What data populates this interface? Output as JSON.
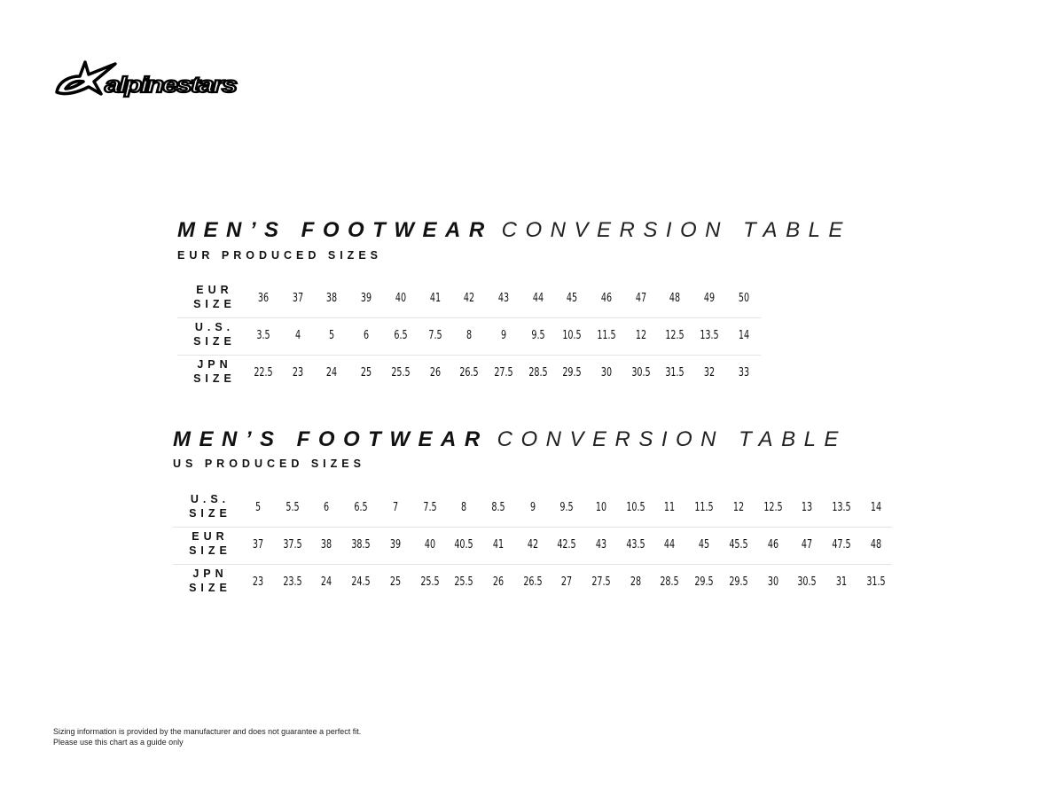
{
  "brand": {
    "logo_text": "alpinestars"
  },
  "tables": [
    {
      "title_bold": "MEN’S FOOTWEAR",
      "title_light": "CONVERSION TABLE",
      "subtitle": "EUR PRODUCED SIZES",
      "rows": [
        {
          "label_top": "EUR",
          "label_bottom": "SIZE",
          "values": [
            "36",
            "37",
            "38",
            "39",
            "40",
            "41",
            "42",
            "43",
            "44",
            "45",
            "46",
            "47",
            "48",
            "49",
            "50"
          ]
        },
        {
          "label_top": "U.S.",
          "label_bottom": "SIZE",
          "values": [
            "3.5",
            "4",
            "5",
            "6",
            "6.5",
            "7.5",
            "8",
            "9",
            "9.5",
            "10.5",
            "11.5",
            "12",
            "12.5",
            "13.5",
            "14"
          ]
        },
        {
          "label_top": "JPN",
          "label_bottom": "SIZE",
          "values": [
            "22.5",
            "23",
            "24",
            "25",
            "25.5",
            "26",
            "26.5",
            "27.5",
            "28.5",
            "29.5",
            "30",
            "30.5",
            "31.5",
            "32",
            "33"
          ]
        }
      ]
    },
    {
      "title_bold": "MEN’S FOOTWEAR",
      "title_light": "CONVERSION TABLE",
      "subtitle": "US PRODUCED SIZES",
      "rows": [
        {
          "label_top": "U.S.",
          "label_bottom": "SIZE",
          "values": [
            "5",
            "5.5",
            "6",
            "6.5",
            "7",
            "7.5",
            "8",
            "8.5",
            "9",
            "9.5",
            "10",
            "10.5",
            "11",
            "11.5",
            "12",
            "12.5",
            "13",
            "13.5",
            "14"
          ]
        },
        {
          "label_top": "EUR",
          "label_bottom": "SIZE",
          "values": [
            "37",
            "37.5",
            "38",
            "38.5",
            "39",
            "40",
            "40.5",
            "41",
            "42",
            "42.5",
            "43",
            "43.5",
            "44",
            "45",
            "45.5",
            "46",
            "47",
            "47.5",
            "48"
          ]
        },
        {
          "label_top": "JPN",
          "label_bottom": "SIZE",
          "values": [
            "23",
            "23.5",
            "24",
            "24.5",
            "25",
            "25.5",
            "25.5",
            "26",
            "26.5",
            "27",
            "27.5",
            "28",
            "28.5",
            "29.5",
            "29.5",
            "30",
            "30.5",
            "31",
            "31.5"
          ]
        }
      ]
    }
  ],
  "footer": {
    "line1": "Sizing information is provided by the manufacturer and does not guarantee a perfect fit.",
    "line2": "Please use this chart as a guide only"
  }
}
